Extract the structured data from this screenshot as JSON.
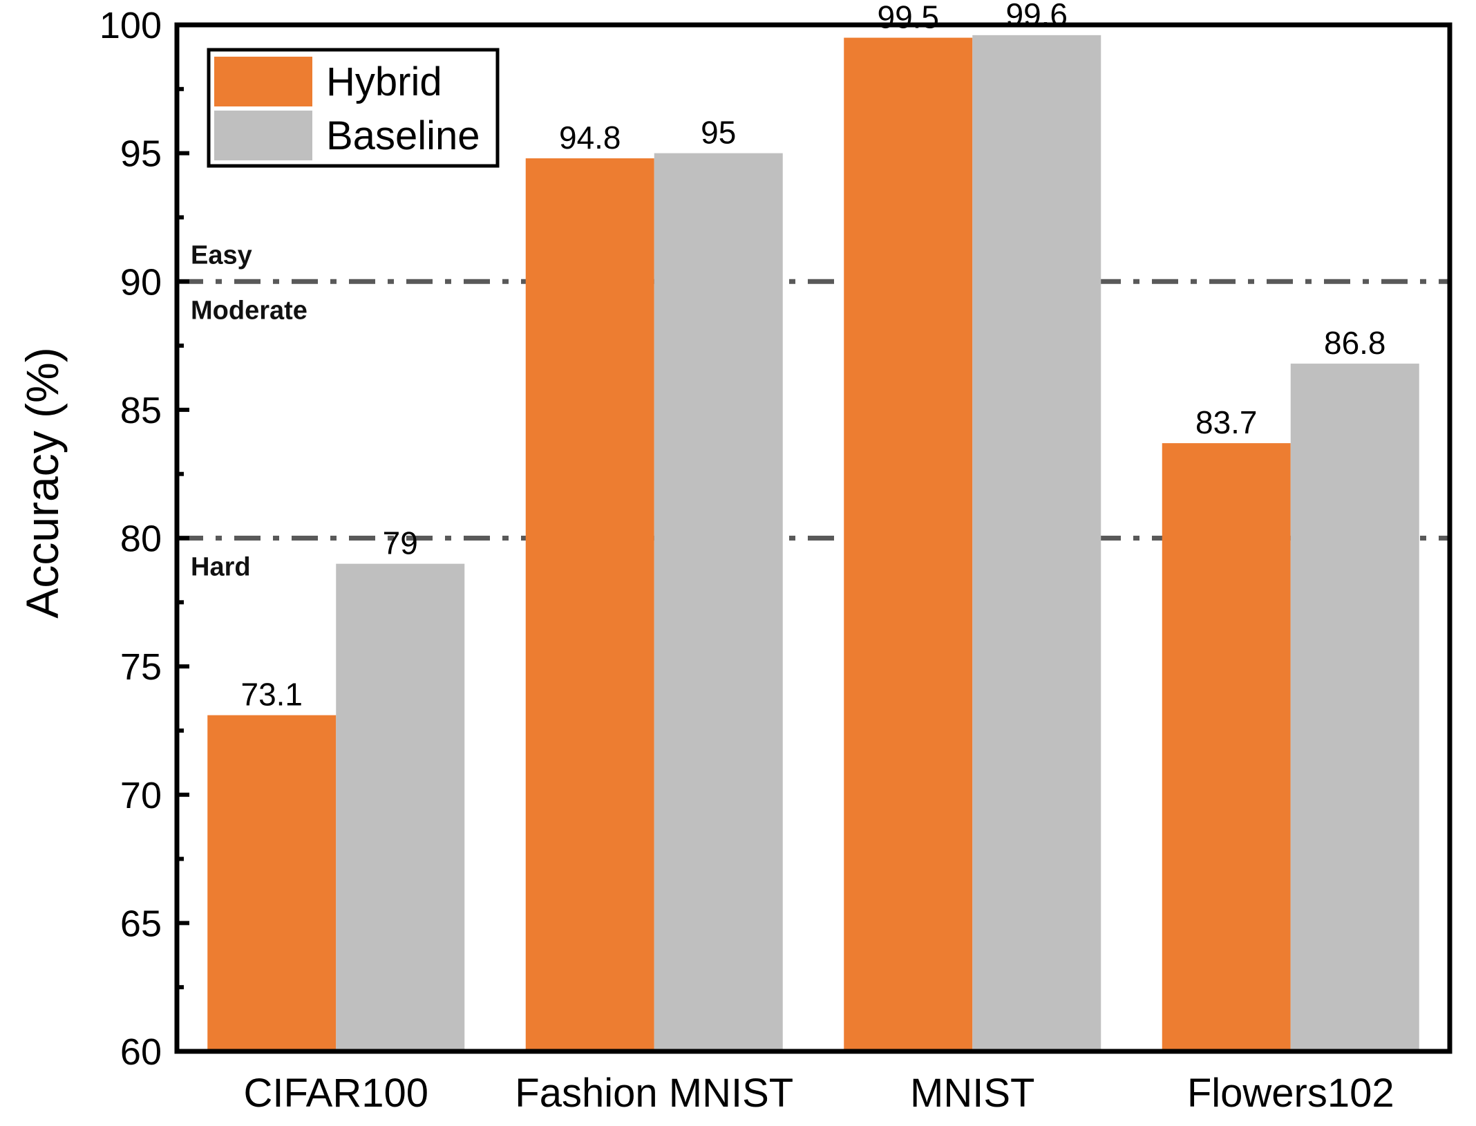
{
  "chart_data": {
    "type": "bar",
    "title": "",
    "xlabel": "",
    "ylabel": "Accuracy (%)",
    "ylim": [
      60,
      100
    ],
    "yticks": [
      60,
      65,
      70,
      75,
      80,
      85,
      90,
      95,
      100
    ],
    "categories": [
      "CIFAR100",
      "Fashion MNIST",
      "MNIST",
      "Flowers102"
    ],
    "series": [
      {
        "name": "Hybrid",
        "values": [
          73.1,
          94.8,
          99.5,
          83.7
        ],
        "labels": [
          "73.1",
          "94.8",
          "99.5",
          "83.7"
        ],
        "color": "#ED7D31"
      },
      {
        "name": "Baseline",
        "values": [
          79,
          95,
          99.6,
          86.8
        ],
        "labels": [
          "79",
          "95",
          "99.6",
          "86.8"
        ],
        "color": "#BFBFBF"
      }
    ],
    "reference_lines": [
      {
        "value": 90,
        "label_above": "Easy",
        "label_below": "Moderate"
      },
      {
        "value": 80,
        "label_below": "Hard"
      }
    ],
    "legend_position": "top-left",
    "grid": false
  }
}
